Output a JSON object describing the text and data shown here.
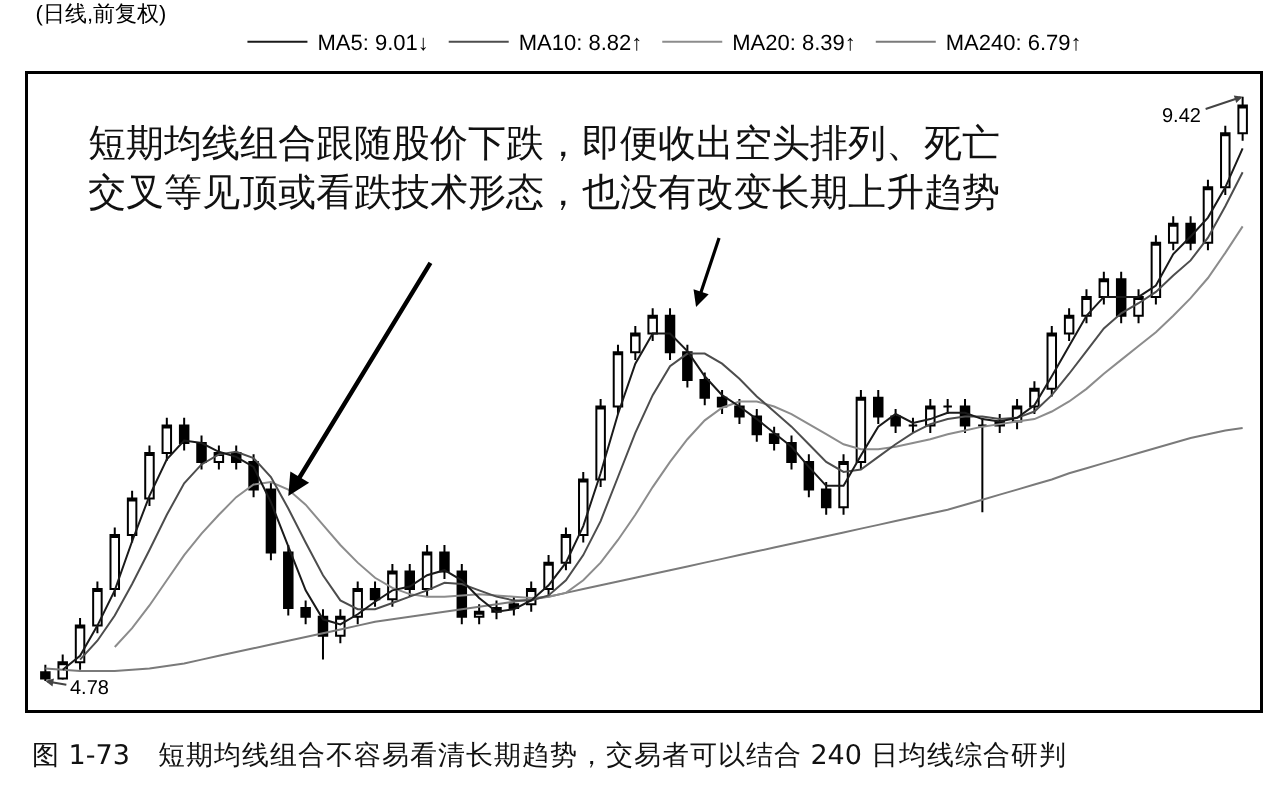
{
  "chart_data": {
    "type": "candlestick",
    "title": "(日线,前复权)",
    "categories": [
      null,
      null,
      null,
      null,
      null,
      null,
      null,
      null,
      null,
      null,
      null,
      null,
      null,
      null,
      null,
      null,
      null,
      null,
      null,
      null,
      null,
      null,
      null,
      null,
      null,
      null,
      null,
      null,
      null,
      null,
      null,
      null,
      null,
      null,
      null,
      null,
      null,
      null,
      null,
      null,
      null,
      null,
      null,
      null,
      null,
      null,
      null,
      null,
      null,
      null,
      null,
      null,
      null,
      null,
      null,
      null,
      null,
      null,
      null,
      null,
      null,
      null,
      null,
      null,
      null,
      null,
      null,
      null,
      null,
      null
    ],
    "series": [
      {
        "type": "line",
        "name": "MA240: 6.79↑",
        "color": "#7a7a7a",
        "values": [
          4.88,
          4.87,
          4.86,
          4.86,
          4.86,
          4.87,
          4.88,
          4.9,
          4.92,
          4.95,
          4.98,
          5.01,
          5.04,
          5.07,
          5.1,
          5.13,
          5.16,
          5.19,
          5.22,
          5.25,
          5.27,
          5.29,
          5.31,
          5.33,
          5.35,
          5.37,
          5.39,
          5.41,
          5.43,
          5.45,
          5.48,
          5.51,
          5.54,
          5.57,
          5.6,
          5.63,
          5.66,
          5.69,
          5.72,
          5.75,
          5.78,
          5.81,
          5.84,
          5.87,
          5.9,
          5.93,
          5.96,
          5.99,
          6.02,
          6.05,
          6.08,
          6.11,
          6.14,
          6.18,
          6.22,
          6.26,
          6.3,
          6.34,
          6.38,
          6.43,
          6.47,
          6.51,
          6.55,
          6.59,
          6.63,
          6.67,
          6.71,
          6.74,
          6.77,
          6.79
        ]
      },
      {
        "type": "line",
        "name": "MA20: 8.39↑",
        "color": "#8c8c8c",
        "values": [
          null,
          null,
          null,
          null,
          5.05,
          5.2,
          5.38,
          5.58,
          5.78,
          5.95,
          6.1,
          6.24,
          6.34,
          6.36,
          6.3,
          6.18,
          6.02,
          5.86,
          5.72,
          5.6,
          5.52,
          5.47,
          5.45,
          5.45,
          5.46,
          5.47,
          5.46,
          5.45,
          5.44,
          5.45,
          5.48,
          5.58,
          5.72,
          5.9,
          6.1,
          6.32,
          6.52,
          6.7,
          6.85,
          6.95,
          7.0,
          7.0,
          6.96,
          6.9,
          6.82,
          6.74,
          6.66,
          6.62,
          6.62,
          6.64,
          6.67,
          6.7,
          6.74,
          6.77,
          6.8,
          6.82,
          6.84,
          6.86,
          6.92,
          7.0,
          7.1,
          7.22,
          7.33,
          7.44,
          7.55,
          7.68,
          7.82,
          7.98,
          8.18,
          8.39
        ]
      },
      {
        "type": "line",
        "name": "MA10: 8.82↑",
        "color": "#4d4d4d",
        "values": [
          null,
          null,
          4.95,
          5.1,
          5.3,
          5.55,
          5.82,
          6.1,
          6.35,
          6.5,
          6.58,
          6.6,
          6.55,
          6.4,
          6.15,
          5.88,
          5.62,
          5.42,
          5.35,
          5.35,
          5.4,
          5.45,
          5.5,
          5.56,
          5.55,
          5.5,
          5.45,
          5.42,
          5.42,
          5.46,
          5.58,
          5.78,
          6.05,
          6.4,
          6.75,
          7.05,
          7.28,
          7.38,
          7.38,
          7.3,
          7.18,
          7.04,
          6.92,
          6.8,
          6.66,
          6.52,
          6.44,
          6.46,
          6.56,
          6.66,
          6.75,
          6.82,
          6.86,
          6.88,
          6.88,
          6.86,
          6.87,
          6.92,
          7.05,
          7.22,
          7.4,
          7.58,
          7.7,
          7.78,
          7.87,
          8.0,
          8.12,
          8.3,
          8.55,
          8.82
        ]
      },
      {
        "type": "line",
        "name": "MA5: 9.01↓",
        "color": "#1a1a1a",
        "values": [
          null,
          4.87,
          4.98,
          5.22,
          5.5,
          5.89,
          6.25,
          6.54,
          6.69,
          6.67,
          6.6,
          6.56,
          6.48,
          6.2,
          5.85,
          5.5,
          5.27,
          5.23,
          5.31,
          5.41,
          5.5,
          5.53,
          5.62,
          5.66,
          5.58,
          5.44,
          5.33,
          5.35,
          5.42,
          5.54,
          5.72,
          6.01,
          6.43,
          6.9,
          7.3,
          7.54,
          7.54,
          7.4,
          7.2,
          7.05,
          6.96,
          6.86,
          6.75,
          6.64,
          6.48,
          6.33,
          6.33,
          6.57,
          6.8,
          6.9,
          6.83,
          6.86,
          6.91,
          6.91,
          6.86,
          6.84,
          6.87,
          6.97,
          7.2,
          7.44,
          7.68,
          7.83,
          7.83,
          7.83,
          7.92,
          8.17,
          8.31,
          8.46,
          8.7,
          9.01
        ]
      },
      {
        "color": "#000000",
        "ohlc": [
          [
            4.85,
            4.91,
            4.78,
            4.8
          ],
          [
            4.8,
            4.99,
            4.79,
            4.93
          ],
          [
            4.93,
            5.28,
            4.87,
            5.22
          ],
          [
            5.22,
            5.57,
            5.16,
            5.51
          ],
          [
            5.51,
            6.0,
            5.45,
            5.94
          ],
          [
            5.94,
            6.29,
            5.88,
            6.23
          ],
          [
            6.23,
            6.65,
            6.17,
            6.59
          ],
          [
            6.59,
            6.87,
            6.53,
            6.81
          ],
          [
            6.81,
            6.87,
            6.61,
            6.67
          ],
          [
            6.67,
            6.73,
            6.46,
            6.52
          ],
          [
            6.52,
            6.65,
            6.46,
            6.59
          ],
          [
            6.59,
            6.65,
            6.46,
            6.52
          ],
          [
            6.52,
            6.58,
            6.24,
            6.3
          ],
          [
            6.3,
            6.36,
            5.74,
            5.8
          ],
          [
            5.8,
            5.86,
            5.3,
            5.36
          ],
          [
            5.36,
            5.42,
            5.23,
            5.29
          ],
          [
            5.29,
            5.35,
            4.95,
            5.14
          ],
          [
            5.14,
            5.35,
            5.08,
            5.29
          ],
          [
            5.29,
            5.57,
            5.23,
            5.51
          ],
          [
            5.51,
            5.57,
            5.37,
            5.43
          ],
          [
            5.43,
            5.71,
            5.37,
            5.65
          ],
          [
            5.65,
            5.71,
            5.45,
            5.51
          ],
          [
            5.51,
            5.86,
            5.45,
            5.8
          ],
          [
            5.8,
            5.86,
            5.59,
            5.65
          ],
          [
            5.65,
            5.71,
            5.23,
            5.29
          ],
          [
            5.29,
            5.39,
            5.23,
            5.33
          ],
          [
            5.33,
            5.42,
            5.27,
            5.36
          ],
          [
            5.36,
            5.45,
            5.3,
            5.39
          ],
          [
            5.39,
            5.57,
            5.33,
            5.51
          ],
          [
            5.51,
            5.78,
            5.45,
            5.72
          ],
          [
            5.72,
            6.0,
            5.66,
            5.94
          ],
          [
            5.94,
            6.44,
            5.88,
            6.38
          ],
          [
            6.38,
            7.02,
            6.32,
            6.96
          ],
          [
            6.96,
            7.45,
            6.9,
            7.39
          ],
          [
            7.39,
            7.6,
            7.33,
            7.54
          ],
          [
            7.54,
            7.74,
            7.48,
            7.68
          ],
          [
            7.68,
            7.74,
            7.33,
            7.39
          ],
          [
            7.39,
            7.45,
            7.11,
            7.17
          ],
          [
            7.17,
            7.23,
            6.97,
            7.03
          ],
          [
            7.03,
            7.09,
            6.9,
            6.96
          ],
          [
            6.96,
            7.02,
            6.82,
            6.88
          ],
          [
            6.88,
            6.94,
            6.68,
            6.74
          ],
          [
            6.74,
            6.8,
            6.61,
            6.67
          ],
          [
            6.67,
            6.73,
            6.46,
            6.52
          ],
          [
            6.52,
            6.58,
            6.24,
            6.3
          ],
          [
            6.3,
            6.36,
            6.1,
            6.16
          ],
          [
            6.16,
            6.58,
            6.1,
            6.52
          ],
          [
            6.52,
            7.09,
            6.46,
            7.03
          ],
          [
            7.03,
            7.09,
            6.82,
            6.88
          ],
          [
            6.88,
            6.94,
            6.75,
            6.81
          ],
          [
            6.81,
            6.87,
            6.75,
            6.81
          ],
          [
            6.81,
            7.02,
            6.75,
            6.96
          ],
          [
            6.96,
            7.02,
            6.9,
            6.96
          ],
          [
            6.96,
            7.02,
            6.75,
            6.81
          ],
          [
            6.81,
            6.87,
            6.12,
            6.81
          ],
          [
            6.81,
            6.9,
            6.75,
            6.84
          ],
          [
            6.84,
            7.02,
            6.78,
            6.96
          ],
          [
            6.96,
            7.16,
            6.9,
            7.1
          ],
          [
            7.1,
            7.6,
            7.04,
            7.54
          ],
          [
            7.54,
            7.74,
            7.48,
            7.68
          ],
          [
            7.68,
            7.89,
            7.62,
            7.83
          ],
          [
            7.83,
            8.03,
            7.77,
            7.97
          ],
          [
            7.97,
            8.03,
            7.62,
            7.68
          ],
          [
            7.68,
            7.89,
            7.62,
            7.83
          ],
          [
            7.83,
            8.32,
            7.77,
            8.26
          ],
          [
            8.26,
            8.47,
            8.2,
            8.41
          ],
          [
            8.41,
            8.47,
            8.2,
            8.26
          ],
          [
            8.26,
            8.76,
            8.2,
            8.7
          ],
          [
            8.7,
            9.19,
            8.64,
            9.13
          ],
          [
            9.13,
            9.42,
            9.07,
            9.35
          ]
        ]
      }
    ],
    "annotations": [
      "4.78",
      "9.42",
      "短期均线组合跟随股价下跌，即便收出空头排列、死亡交叉等见顶或看跌技术形态，也没有改变长期上升趋势",
      "图 1-73　短期均线组合不容易看清长期趋势，交易者可以结合 240 日均线综合研判"
    ],
    "legend": "top left",
    "tick_labels": false
  }
}
